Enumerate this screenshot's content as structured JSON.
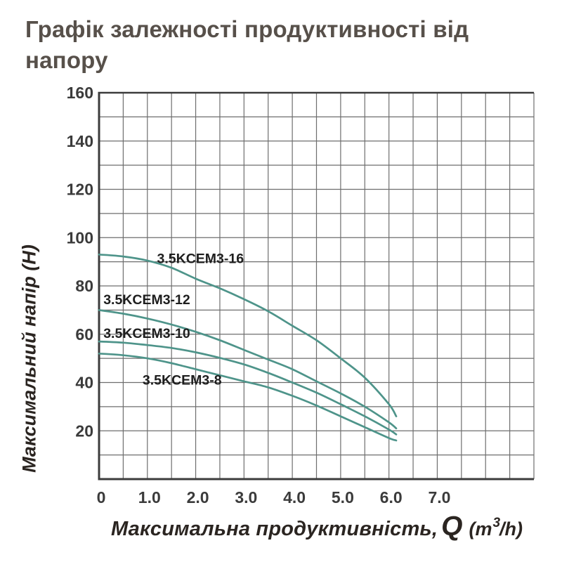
{
  "header": {
    "title": "Графік залежності продуктивності від напору"
  },
  "x_axis_title": {
    "prefix": "Максимальна продуктивність,",
    "symbol": "Q",
    "unit_prefix": "(m",
    "unit_sup": "3",
    "unit_suffix": "/h)"
  },
  "y_axis_title": {
    "label": "Максимальний напір (Н)"
  },
  "colors": {
    "curve": "#4e948a",
    "grid": "#6e6e6e",
    "axis_border": "#3c3c3c",
    "tick_text": "#3b3b3b",
    "curve_label_text": "#1e1e1e",
    "title_text": "#57504a"
  },
  "chart_data": {
    "type": "line",
    "title": "Графік залежності продуктивності від напору",
    "xlabel": "Максимальна продуктивність, Q (m³/h)",
    "ylabel": "Максимальний напір (Н)",
    "xlim": [
      0,
      9
    ],
    "ylim": [
      0,
      160
    ],
    "x_grid_step": 0.5,
    "y_grid_step": 10,
    "grid": true,
    "legend_position": "inline-curve-labels",
    "x_ticks": [
      {
        "v": 0,
        "label": "0"
      },
      {
        "v": 1,
        "label": "1.0"
      },
      {
        "v": 2,
        "label": "2.0"
      },
      {
        "v": 3,
        "label": "3.0"
      },
      {
        "v": 4,
        "label": "4.0"
      },
      {
        "v": 5,
        "label": "5.0"
      },
      {
        "v": 6,
        "label": "6.0"
      },
      {
        "v": 7,
        "label": "7.0"
      }
    ],
    "y_ticks": [
      {
        "v": 20,
        "label": "20"
      },
      {
        "v": 40,
        "label": "40"
      },
      {
        "v": 60,
        "label": "60"
      },
      {
        "v": 80,
        "label": "80"
      },
      {
        "v": 100,
        "label": "100"
      },
      {
        "v": 120,
        "label": "120"
      },
      {
        "v": 140,
        "label": "140"
      },
      {
        "v": 160,
        "label": "160"
      }
    ],
    "series": [
      {
        "name": "3.5KCEM3-16",
        "label_anchor": {
          "q": 1.2,
          "h": 89.5
        },
        "points": [
          [
            0,
            93
          ],
          [
            0.5,
            92.2
          ],
          [
            1,
            90.5
          ],
          [
            1.5,
            87.5
          ],
          [
            2,
            83
          ],
          [
            2.5,
            79
          ],
          [
            3,
            74.5
          ],
          [
            3.5,
            69.5
          ],
          [
            4,
            63.5
          ],
          [
            4.5,
            57.5
          ],
          [
            5,
            50
          ],
          [
            5.5,
            42
          ],
          [
            6,
            31
          ],
          [
            6.15,
            26
          ]
        ]
      },
      {
        "name": "3.5KCEM3-12",
        "label_anchor": {
          "q": 0.09,
          "h": 72.5
        },
        "points": [
          [
            0,
            70
          ],
          [
            0.5,
            68.5
          ],
          [
            1,
            66.5
          ],
          [
            1.5,
            64
          ],
          [
            2,
            61
          ],
          [
            2.5,
            57.5
          ],
          [
            3,
            53.5
          ],
          [
            3.5,
            49.5
          ],
          [
            4,
            45.5
          ],
          [
            4.5,
            40.5
          ],
          [
            5,
            35.5
          ],
          [
            5.5,
            30
          ],
          [
            6,
            23.5
          ],
          [
            6.15,
            21
          ]
        ]
      },
      {
        "name": "3.5KCEM3-10",
        "label_anchor": {
          "q": 0.09,
          "h": 58.5
        },
        "points": [
          [
            0,
            57
          ],
          [
            0.5,
            56.5
          ],
          [
            1,
            55.5
          ],
          [
            1.5,
            54.3
          ],
          [
            2,
            52.5
          ],
          [
            2.5,
            50.2
          ],
          [
            3,
            47.5
          ],
          [
            3.5,
            44
          ],
          [
            4,
            40
          ],
          [
            4.5,
            35.8
          ],
          [
            5,
            31
          ],
          [
            5.5,
            26
          ],
          [
            6,
            20.5
          ],
          [
            6.15,
            18.5
          ]
        ]
      },
      {
        "name": "3.5KCEM3-8",
        "label_anchor": {
          "q": 0.9,
          "h": 39.2
        },
        "points": [
          [
            0,
            52
          ],
          [
            0.5,
            51.3
          ],
          [
            1,
            50
          ],
          [
            1.5,
            48
          ],
          [
            2,
            45.5
          ],
          [
            2.5,
            43
          ],
          [
            3,
            40.5
          ],
          [
            3.5,
            38
          ],
          [
            4,
            34.5
          ],
          [
            4.5,
            30.5
          ],
          [
            5,
            26
          ],
          [
            5.5,
            21.5
          ],
          [
            6,
            17
          ],
          [
            6.15,
            16
          ]
        ]
      }
    ]
  }
}
